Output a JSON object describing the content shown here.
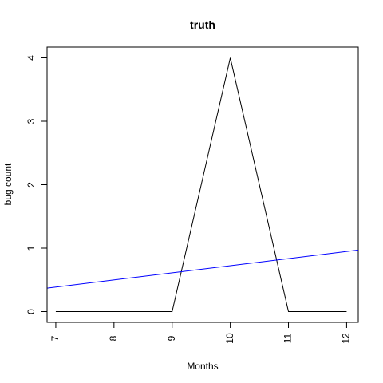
{
  "chart_data": {
    "type": "line",
    "title": "truth",
    "xlabel": "Months",
    "ylabel": "bug count",
    "xlim": [
      6.85,
      12.2
    ],
    "ylim": [
      -0.17,
      4.17
    ],
    "xticks": [
      7,
      8,
      9,
      10,
      11,
      12
    ],
    "yticks": [
      0,
      1,
      2,
      3,
      4
    ],
    "grid": false,
    "series": [
      {
        "color": "#000000",
        "x": [
          7,
          8,
          9,
          10,
          11,
          12
        ],
        "y": [
          0,
          0,
          0,
          4,
          0,
          0
        ]
      },
      {
        "color": "#0000ff",
        "type": "trend-line",
        "x": [
          6.85,
          12.2
        ],
        "y": [
          0.37,
          0.97
        ]
      }
    ]
  }
}
